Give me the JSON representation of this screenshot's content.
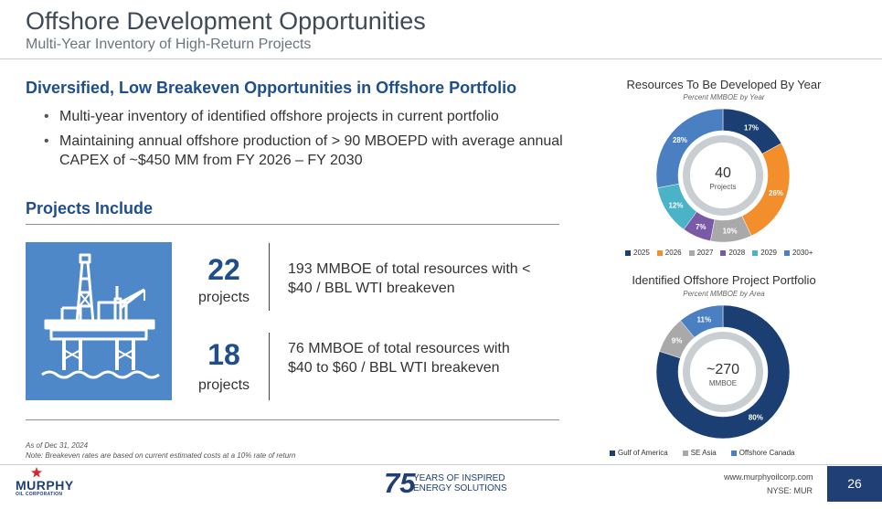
{
  "header": {
    "title": "Offshore Development Opportunities",
    "subtitle": "Multi-Year Inventory of High-Return Projects"
  },
  "main": {
    "heading": "Diversified, Low Breakeven Opportunities in Offshore Portfolio",
    "bullets": [
      "Multi-year inventory of identified offshore projects in current portfolio",
      "Maintaining annual offshore production of > 90 MBOEPD with average annual CAPEX of ~$450 MM from FY 2026 – FY 2030"
    ],
    "projects_heading": "Projects Include",
    "stats": [
      {
        "number": "22",
        "unit": "projects",
        "description": "193 MMBOE of total resources with < $40 / BBL WTI breakeven"
      },
      {
        "number": "18",
        "unit": "projects",
        "description": "76 MMBOE of total resources with $40 to $60 / BBL WTI breakeven"
      }
    ],
    "as_of": "As of Dec 31, 2024",
    "note": "Note: Breakeven rates are based on current estimated costs at a 10% rate of return"
  },
  "chart_data": [
    {
      "type": "pie",
      "title": "Resources To Be Developed By Year",
      "subtitle": "Percent MMBOE by Year",
      "center_value": "40",
      "center_label": "Projects",
      "categories": [
        "2025",
        "2026",
        "2027",
        "2028",
        "2029",
        "2030+"
      ],
      "values": [
        17,
        26,
        10,
        7,
        12,
        28
      ],
      "labels": [
        "17%",
        "26%",
        "10%",
        "7%",
        "12%",
        "28%"
      ],
      "colors": [
        "#1b3f73",
        "#f28e2b",
        "#a9a9a9",
        "#7a5aa6",
        "#4ab3c8",
        "#4a7fc1"
      ],
      "legend": "bottom"
    },
    {
      "type": "pie",
      "title": "Identified Offshore Project Portfolio",
      "subtitle": "Percent MMBOE by Area",
      "center_value": "~270",
      "center_label": "MMBOE",
      "categories": [
        "Gulf of America",
        "SE Asia",
        "Offshore Canada"
      ],
      "values": [
        80,
        9,
        11
      ],
      "labels": [
        "80%",
        "9%",
        "11%"
      ],
      "colors": [
        "#1b3f73",
        "#a9a9a9",
        "#4a7fc1"
      ],
      "legend": "bottom"
    }
  ],
  "footer": {
    "logo": "MURPHY",
    "logo_sub": "OIL CORPORATION",
    "anniversary_number": "75",
    "anniversary_line1": "YEARS OF INSPIRED",
    "anniversary_line2": "ENERGY SOLUTIONS",
    "website": "www.murphyoilcorp.com",
    "ticker": "NYSE: MUR",
    "page_number": "26"
  }
}
